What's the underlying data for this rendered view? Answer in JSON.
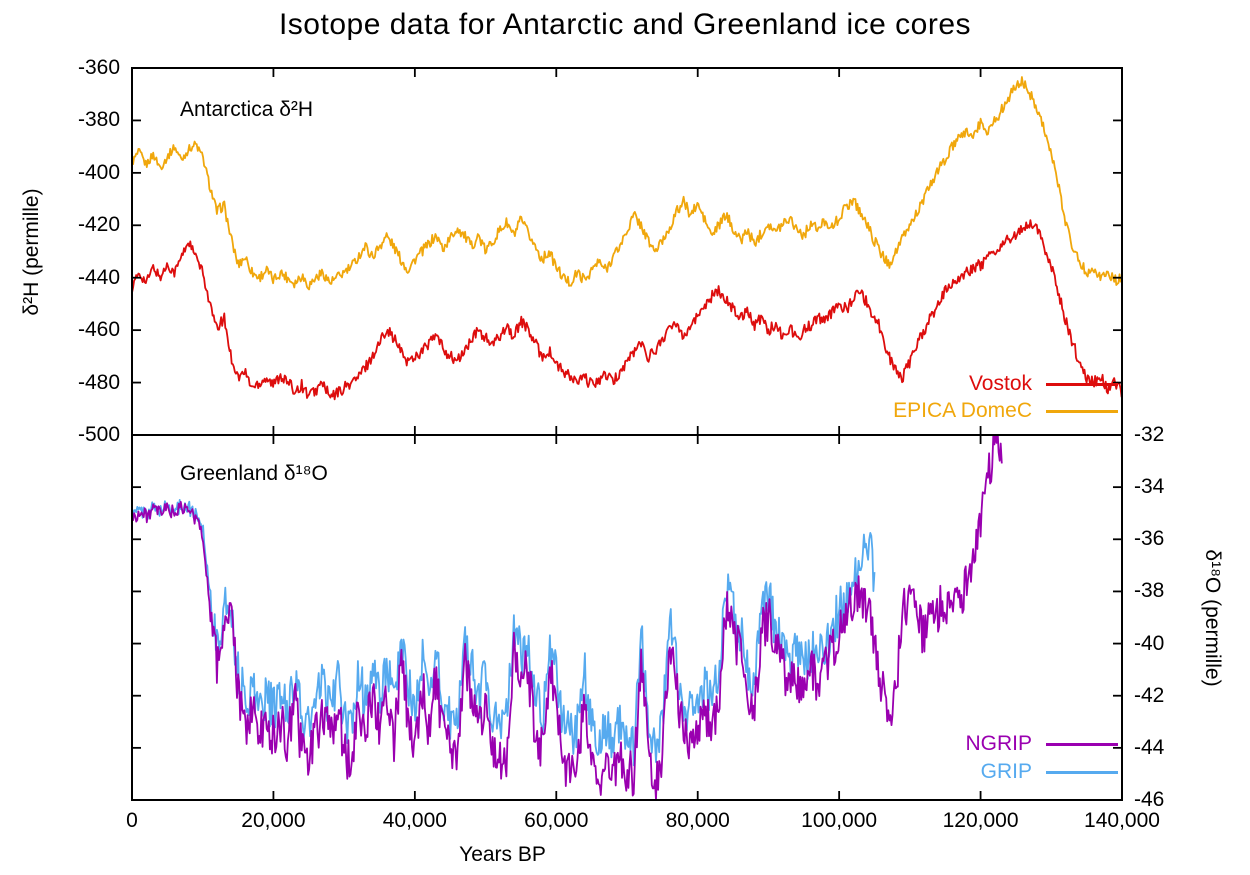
{
  "title": "Isotope data for Antarctic and Greenland ice cores",
  "x_axis": {
    "label": "Years BP",
    "range": [
      0,
      140000
    ],
    "ticks": [
      0,
      20000,
      40000,
      60000,
      80000,
      100000,
      120000,
      140000
    ],
    "tick_labels": [
      "0",
      "20,000",
      "40,000",
      "60,000",
      "80,000",
      "100,000",
      "120,000",
      "140,000"
    ]
  },
  "panels": {
    "top": {
      "annotation": "Antarctica δ²H",
      "y_axis": {
        "label": "δ²H (permille)",
        "side": "left",
        "range": [
          -500,
          -360
        ],
        "ticks": [
          -360,
          -380,
          -400,
          -420,
          -440,
          -460,
          -480,
          -500
        ],
        "tick_labels": [
          "-360",
          "-380",
          "-400",
          "-420",
          "-440",
          "-460",
          "-480",
          "-500"
        ]
      },
      "legend": [
        {
          "series": "Vostok",
          "color": "#dd0d0d"
        },
        {
          "series": "EPICA DomeC",
          "color": "#f0a70c"
        }
      ]
    },
    "bottom": {
      "annotation": "Greenland δ¹⁸O",
      "y_axis": {
        "label": "δ¹⁸O (permille)",
        "side": "right",
        "range": [
          -46,
          -32
        ],
        "ticks": [
          -32,
          -34,
          -36,
          -38,
          -40,
          -42,
          -44,
          -46
        ],
        "tick_labels": [
          "-32",
          "-34",
          "-36",
          "-38",
          "-40",
          "-42",
          "-44",
          "-46"
        ]
      },
      "legend": [
        {
          "series": "NGRIP",
          "color": "#9a00b0"
        },
        {
          "series": "GRIP",
          "color": "#56aaef"
        }
      ]
    }
  },
  "style": {
    "background": "#ffffff",
    "axis_color": "#000000"
  },
  "chart_data": [
    {
      "type": "line",
      "panel": "top",
      "name": "Vostok",
      "color": "#dd0d0d",
      "x_unit": "years BP",
      "x_start": 0,
      "x_step": 1000,
      "noise_amplitude": 2.2,
      "quiet_before_x": 10500,
      "quiet_factor": 0.8,
      "y": [
        -444,
        -438,
        -442,
        -436,
        -440,
        -435,
        -438,
        -432,
        -426,
        -432,
        -438,
        -450,
        -460,
        -455,
        -470,
        -478,
        -476,
        -482,
        -480,
        -478,
        -481,
        -477,
        -480,
        -483,
        -481,
        -485,
        -483,
        -480,
        -486,
        -484,
        -482,
        -480,
        -478,
        -474,
        -470,
        -465,
        -459,
        -463,
        -468,
        -472,
        -470,
        -468,
        -465,
        -462,
        -467,
        -470,
        -472,
        -468,
        -464,
        -460,
        -463,
        -466,
        -462,
        -458,
        -463,
        -456,
        -460,
        -465,
        -470,
        -468,
        -473,
        -476,
        -478,
        -480,
        -478,
        -481,
        -479,
        -477,
        -480,
        -476,
        -472,
        -468,
        -465,
        -470,
        -468,
        -463,
        -460,
        -457,
        -462,
        -458,
        -455,
        -450,
        -447,
        -445,
        -448,
        -452,
        -455,
        -452,
        -458,
        -455,
        -460,
        -458,
        -462,
        -459,
        -463,
        -460,
        -458,
        -455,
        -457,
        -453,
        -450,
        -452,
        -448,
        -445,
        -450,
        -455,
        -460,
        -470,
        -475,
        -478,
        -472,
        -465,
        -460,
        -455,
        -450,
        -445,
        -442,
        -440,
        -438,
        -436,
        -435,
        -433,
        -430,
        -428,
        -425,
        -424,
        -421,
        -419,
        -422,
        -428,
        -436,
        -446,
        -456,
        -465,
        -472,
        -478,
        -480,
        -478,
        -482,
        -480,
        -484
      ]
    },
    {
      "type": "line",
      "panel": "top",
      "name": "EPICA DomeC",
      "color": "#f0a70c",
      "x_unit": "years BP",
      "x_start": 0,
      "x_step": 1000,
      "noise_amplitude": 2.0,
      "quiet_before_x": 10500,
      "quiet_factor": 0.8,
      "y": [
        -396,
        -392,
        -397,
        -393,
        -398,
        -394,
        -390,
        -395,
        -391,
        -389,
        -394,
        -405,
        -415,
        -412,
        -425,
        -435,
        -432,
        -438,
        -440,
        -437,
        -441,
        -438,
        -440,
        -442,
        -439,
        -443,
        -440,
        -438,
        -442,
        -440,
        -438,
        -436,
        -432,
        -428,
        -432,
        -428,
        -424,
        -428,
        -433,
        -437,
        -433,
        -430,
        -427,
        -424,
        -429,
        -425,
        -421,
        -424,
        -428,
        -424,
        -430,
        -426,
        -422,
        -419,
        -424,
        -418,
        -423,
        -428,
        -433,
        -430,
        -436,
        -440,
        -442,
        -438,
        -441,
        -437,
        -434,
        -437,
        -432,
        -428,
        -422,
        -416,
        -420,
        -426,
        -430,
        -426,
        -421,
        -415,
        -411,
        -416,
        -412,
        -418,
        -424,
        -420,
        -416,
        -421,
        -426,
        -422,
        -427,
        -423,
        -419,
        -423,
        -419,
        -417,
        -421,
        -424,
        -419,
        -422,
        -418,
        -421,
        -417,
        -413,
        -410,
        -415,
        -420,
        -426,
        -431,
        -435,
        -430,
        -425,
        -420,
        -415,
        -410,
        -404,
        -399,
        -395,
        -390,
        -387,
        -384,
        -386,
        -381,
        -384,
        -380,
        -376,
        -371,
        -367,
        -365,
        -370,
        -375,
        -383,
        -393,
        -405,
        -418,
        -428,
        -434,
        -438,
        -436,
        -440,
        -438,
        -441,
        -440
      ]
    },
    {
      "type": "line",
      "panel": "bottom",
      "name": "GRIP",
      "color": "#56aaef",
      "x_unit": "years BP",
      "x_start": 0,
      "x_step": 1000,
      "noise_amplitude": 0.9,
      "quiet_before_x": 10500,
      "quiet_factor": 0.3,
      "y": [
        -35.1,
        -34.9,
        -35.0,
        -34.8,
        -34.9,
        -34.7,
        -34.9,
        -34.7,
        -34.8,
        -35.0,
        -35.5,
        -38.0,
        -40.2,
        -38.8,
        -38.4,
        -41.2,
        -42.2,
        -41.6,
        -42.4,
        -42.0,
        -42.6,
        -42.0,
        -42.6,
        -41.2,
        -42.8,
        -43.2,
        -42.4,
        -41.4,
        -42.6,
        -41.2,
        -43.0,
        -43.4,
        -41.0,
        -42.4,
        -40.8,
        -42.2,
        -40.6,
        -42.6,
        -39.8,
        -41.4,
        -42.8,
        -40.6,
        -42.0,
        -40.2,
        -42.4,
        -43.0,
        -43.2,
        -39.6,
        -40.8,
        -42.2,
        -41.0,
        -42.8,
        -43.2,
        -42.8,
        -39.4,
        -40.4,
        -40.0,
        -42.0,
        -42.8,
        -40.0,
        -41.2,
        -43.0,
        -43.6,
        -43.0,
        -41.0,
        -43.2,
        -43.8,
        -43.4,
        -43.6,
        -43.0,
        -43.4,
        -43.8,
        -39.6,
        -42.8,
        -44.0,
        -42.9,
        -39.2,
        -40.8,
        -42.2,
        -42.8,
        -42.0,
        -41.6,
        -41.9,
        -41.4,
        -37.9,
        -38.5,
        -39.6,
        -40.8,
        -41.6,
        -38.8,
        -38.2,
        -39.4,
        -40.2,
        -40.8,
        -40.4,
        -41.0,
        -40.2,
        -40.6,
        -40.0,
        -39.4,
        -38.8,
        -38.2,
        -37.6,
        -37.2,
        -35.8,
        -37.5
      ]
    },
    {
      "type": "line",
      "panel": "bottom",
      "name": "NGRIP",
      "color": "#9a00b0",
      "x_unit": "years BP",
      "x_start": 0,
      "x_step": 1000,
      "noise_amplitude": 0.9,
      "quiet_before_x": 10500,
      "quiet_factor": 0.3,
      "y": [
        -35.2,
        -35.0,
        -35.1,
        -34.9,
        -35.0,
        -34.8,
        -35.0,
        -34.8,
        -34.9,
        -35.2,
        -35.8,
        -38.5,
        -40.8,
        -39.2,
        -38.8,
        -42.0,
        -43.2,
        -42.6,
        -43.5,
        -43.0,
        -43.6,
        -43.0,
        -43.8,
        -42.2,
        -44.0,
        -44.4,
        -43.6,
        -42.4,
        -43.8,
        -42.2,
        -44.2,
        -44.6,
        -42.0,
        -43.6,
        -41.8,
        -43.4,
        -41.6,
        -43.8,
        -40.8,
        -42.6,
        -44.0,
        -41.6,
        -43.2,
        -41.2,
        -43.6,
        -44.2,
        -44.6,
        -40.6,
        -41.8,
        -43.4,
        -42.0,
        -44.0,
        -44.6,
        -44.2,
        -40.4,
        -41.4,
        -41.0,
        -43.2,
        -44.0,
        -41.0,
        -42.2,
        -44.4,
        -45.0,
        -44.4,
        -42.0,
        -44.6,
        -45.2,
        -44.8,
        -45.0,
        -44.4,
        -44.8,
        -45.2,
        -40.6,
        -44.0,
        -45.4,
        -44.2,
        -40.2,
        -41.8,
        -43.4,
        -44.0,
        -43.2,
        -42.6,
        -43.0,
        -42.4,
        -38.8,
        -39.4,
        -40.6,
        -41.8,
        -42.6,
        -39.6,
        -39.0,
        -40.2,
        -41.0,
        -41.6,
        -41.2,
        -41.8,
        -41.0,
        -41.4,
        -40.8,
        -40.2,
        -39.6,
        -39.0,
        -38.4,
        -38.0,
        -38.6,
        -39.8,
        -41.6,
        -42.8,
        -42.0,
        -38.6,
        -38.2,
        -39.0,
        -39.6,
        -39.2,
        -38.8,
        -38.4,
        -38.8,
        -38.2,
        -37.6,
        -36.8,
        -35.4,
        -33.8,
        -32.4,
        -32.2
      ]
    }
  ]
}
